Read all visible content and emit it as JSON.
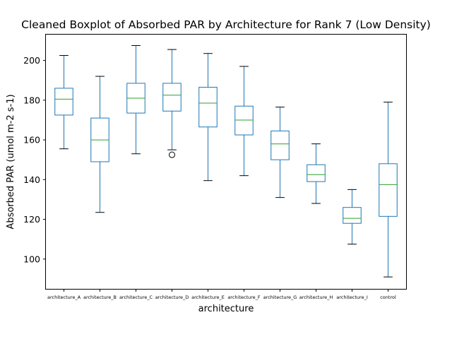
{
  "chart_data": {
    "type": "boxplot",
    "title": "Cleaned Boxplot of Absorbed PAR by Architecture for Rank 7 (Low Density)",
    "xlabel": "architecture",
    "ylabel": "Absorbed PAR (umol m-2 s-1)",
    "ylim": [
      85,
      213
    ],
    "yticks": [
      100,
      120,
      140,
      160,
      180,
      200
    ],
    "grid": false,
    "box_color": "#1f77b4",
    "median_color": "#2ca02c",
    "categories": [
      "architecture_A",
      "architecture_B",
      "architecture_C",
      "architecture_D",
      "architecture_E",
      "architecture_F",
      "architecture_G",
      "architecture_H",
      "architecture_I",
      "control"
    ],
    "boxes": [
      {
        "whisker_low": 155.5,
        "q1": 172.5,
        "median": 180.5,
        "q3": 186.0,
        "whisker_high": 202.5,
        "outliers": []
      },
      {
        "whisker_low": 123.5,
        "q1": 149.0,
        "median": 160.0,
        "q3": 171.0,
        "whisker_high": 192.0,
        "outliers": []
      },
      {
        "whisker_low": 153.0,
        "q1": 173.5,
        "median": 181.0,
        "q3": 188.5,
        "whisker_high": 207.5,
        "outliers": []
      },
      {
        "whisker_low": 155.0,
        "q1": 174.5,
        "median": 182.5,
        "q3": 188.5,
        "whisker_high": 205.5,
        "outliers": [
          152.5
        ]
      },
      {
        "whisker_low": 139.5,
        "q1": 166.5,
        "median": 178.5,
        "q3": 186.5,
        "whisker_high": 203.5,
        "outliers": []
      },
      {
        "whisker_low": 142.0,
        "q1": 162.5,
        "median": 170.0,
        "q3": 177.0,
        "whisker_high": 197.0,
        "outliers": []
      },
      {
        "whisker_low": 131.0,
        "q1": 150.0,
        "median": 158.0,
        "q3": 164.5,
        "whisker_high": 176.5,
        "outliers": []
      },
      {
        "whisker_low": 128.0,
        "q1": 139.0,
        "median": 142.5,
        "q3": 147.5,
        "whisker_high": 158.0,
        "outliers": []
      },
      {
        "whisker_low": 107.5,
        "q1": 118.0,
        "median": 120.5,
        "q3": 126.0,
        "whisker_high": 135.0,
        "outliers": []
      },
      {
        "whisker_low": 91.0,
        "q1": 121.5,
        "median": 137.5,
        "q3": 148.0,
        "whisker_high": 179.0,
        "outliers": []
      }
    ]
  }
}
